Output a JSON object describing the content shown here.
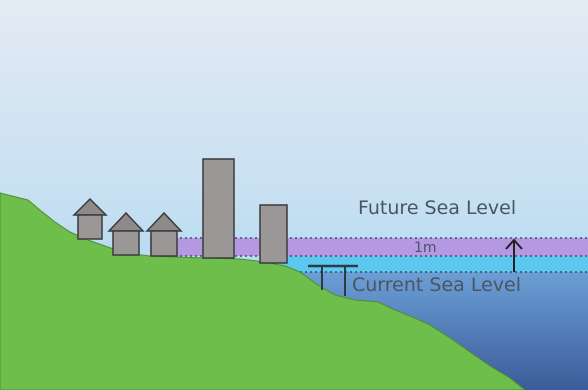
{
  "labels": {
    "future_sea_level": "Future Sea Level",
    "current_sea_level": "Current Sea Level",
    "rise_amount": "1m"
  },
  "colors": {
    "sky_top": "#dfe8f2",
    "sky_bottom": "#93cdf0",
    "land": "#6dbd4a",
    "land_outline": "#4e8a32",
    "future_band": "#b58fe0",
    "current_band": "#5cc6ee",
    "ocean_top": "#6a9ad2",
    "ocean_bottom": "#3a5f9a",
    "building": "#9b9797",
    "roof": "#8e8a8a",
    "outline": "#3a3a3a"
  },
  "icons": {
    "rise_arrow": "up-arrow-icon"
  }
}
